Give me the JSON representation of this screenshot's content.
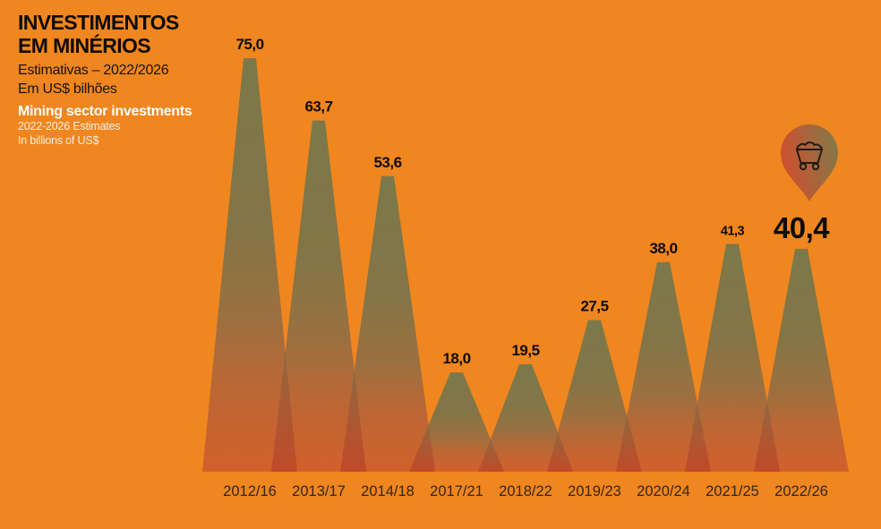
{
  "header": {
    "title_line1": "INVESTIMENTOS",
    "title_line2": "EM MINÉRIOS",
    "subtitle_pt_1": "Estimativas – 2022/2026",
    "subtitle_pt_2": "Em US$ bilhões",
    "subtitle_en_title": "Mining sector investments",
    "subtitle_en_1": "2022-2026 Estimates",
    "subtitle_en_2": "In billions of US$",
    "badge_icon": "mine-cart-in-map-pin"
  },
  "colors": {
    "background": "#f0861f",
    "peak_top": "#7c7849",
    "peak_upper_mid": "#837547",
    "peak_mid": "#9a7040",
    "peak_lower": "#bc6734",
    "peak_bottom": "#d2602c",
    "overlap_top": "#8f6a40",
    "overlap_mid": "#b05531",
    "overlap_bottom": "#c04a29",
    "value_label": "#0d0b06",
    "category_label": "#33261a",
    "pin_left": "#cc5130",
    "pin_right": "#7f7b4a",
    "pin_stroke": "#231a10"
  },
  "chart_data": {
    "type": "bar",
    "style": "triangle-peaks",
    "title": "INVESTIMENTOS EM MINÉRIOS",
    "subtitle": "Estimativas – 2022/2026, Em US$ bilhões",
    "unit": "US$ billions",
    "categories": [
      "2012/16",
      "2013/17",
      "2014/18",
      "2017/21",
      "2018/22",
      "2019/23",
      "2020/24",
      "2021/25",
      "2022/26"
    ],
    "values": [
      75.0,
      63.7,
      53.6,
      18.0,
      19.5,
      27.5,
      38.0,
      41.3,
      40.4
    ],
    "value_labels": [
      "75,0",
      "63,7",
      "53,6",
      "18,0",
      "19,5",
      "27,5",
      "38,0",
      "41,3",
      "40,4"
    ],
    "highlight_index": 8,
    "small_label_index": 7,
    "ylim": [
      0,
      80
    ],
    "grid": false,
    "legend_position": "none",
    "value_labels_shown_above_peaks": true
  }
}
